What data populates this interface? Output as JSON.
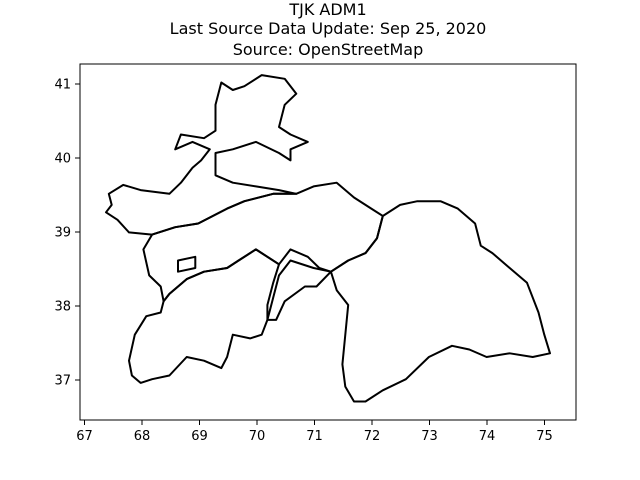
{
  "title_lines": [
    "TJK ADM1",
    "Last Source Data Update: Sep 25, 2020",
    "Source: OpenStreetMap"
  ],
  "x_ticks": [
    "67",
    "68",
    "69",
    "70",
    "71",
    "72",
    "73",
    "74",
    "75"
  ],
  "y_ticks": [
    "37",
    "38",
    "39",
    "40",
    "41"
  ],
  "chart_data": {
    "type": "map",
    "country": "TJK",
    "admin_level": "ADM1",
    "xlim": [
      66.95,
      75.55
    ],
    "ylim": [
      36.45,
      41.25
    ],
    "x_ticks": [
      67,
      68,
      69,
      70,
      71,
      72,
      73,
      74,
      75
    ],
    "y_ticks": [
      37,
      38,
      39,
      40,
      41
    ],
    "regions": [
      {
        "coords": [
          [
            69.4,
            41.0
          ],
          [
            69.6,
            40.9
          ],
          [
            69.8,
            40.95
          ],
          [
            70.1,
            41.1
          ],
          [
            70.5,
            41.05
          ],
          [
            70.7,
            40.85
          ],
          [
            70.5,
            40.7
          ],
          [
            70.4,
            40.4
          ],
          [
            70.6,
            40.3
          ],
          [
            70.9,
            40.2
          ],
          [
            70.6,
            40.1
          ],
          [
            70.6,
            39.95
          ],
          [
            70.4,
            40.05
          ],
          [
            70.0,
            40.2
          ],
          [
            69.6,
            40.1
          ],
          [
            69.3,
            40.05
          ],
          [
            69.3,
            39.75
          ],
          [
            69.6,
            39.65
          ],
          [
            70.0,
            39.6
          ],
          [
            70.4,
            39.55
          ],
          [
            70.7,
            39.5
          ],
          [
            70.3,
            39.5
          ],
          [
            69.8,
            39.4
          ],
          [
            69.5,
            39.3
          ],
          [
            69.0,
            39.1
          ],
          [
            68.6,
            39.05
          ],
          [
            68.2,
            38.95
          ],
          [
            67.8,
            38.98
          ],
          [
            67.6,
            39.15
          ],
          [
            67.4,
            39.25
          ],
          [
            67.5,
            39.35
          ],
          [
            67.45,
            39.5
          ],
          [
            67.7,
            39.62
          ],
          [
            68.0,
            39.55
          ],
          [
            68.5,
            39.5
          ],
          [
            68.7,
            39.65
          ],
          [
            68.9,
            39.85
          ],
          [
            69.05,
            39.95
          ],
          [
            69.2,
            40.1
          ],
          [
            68.9,
            40.2
          ],
          [
            68.6,
            40.1
          ],
          [
            68.7,
            40.3
          ],
          [
            69.1,
            40.25
          ],
          [
            69.3,
            40.35
          ],
          [
            69.3,
            40.7
          ],
          [
            69.4,
            41.0
          ]
        ]
      },
      {
        "coords": [
          [
            68.2,
            38.95
          ],
          [
            68.6,
            39.05
          ],
          [
            69.0,
            39.1
          ],
          [
            69.5,
            39.3
          ],
          [
            69.8,
            39.4
          ],
          [
            70.3,
            39.5
          ],
          [
            70.7,
            39.5
          ],
          [
            71.0,
            39.6
          ],
          [
            71.4,
            39.65
          ],
          [
            71.7,
            39.45
          ],
          [
            72.0,
            39.3
          ],
          [
            72.2,
            39.2
          ],
          [
            72.1,
            38.9
          ],
          [
            71.9,
            38.7
          ],
          [
            71.6,
            38.6
          ],
          [
            71.3,
            38.45
          ],
          [
            71.1,
            38.5
          ],
          [
            70.9,
            38.65
          ],
          [
            70.6,
            38.75
          ],
          [
            70.4,
            38.55
          ],
          [
            70.0,
            38.75
          ],
          [
            69.7,
            38.6
          ],
          [
            69.5,
            38.5
          ],
          [
            69.1,
            38.45
          ],
          [
            68.8,
            38.35
          ],
          [
            68.5,
            38.15
          ],
          [
            68.4,
            38.05
          ],
          [
            68.35,
            38.25
          ],
          [
            68.15,
            38.4
          ],
          [
            68.05,
            38.75
          ],
          [
            68.2,
            38.95
          ]
        ]
      },
      {
        "coords": [
          [
            68.65,
            38.6
          ],
          [
            68.95,
            38.65
          ],
          [
            68.95,
            38.5
          ],
          [
            68.65,
            38.45
          ],
          [
            68.65,
            38.6
          ]
        ]
      },
      {
        "coords": [
          [
            68.5,
            38.15
          ],
          [
            68.8,
            38.35
          ],
          [
            69.1,
            38.45
          ],
          [
            69.5,
            38.5
          ],
          [
            69.7,
            38.6
          ],
          [
            70.0,
            38.75
          ],
          [
            70.4,
            38.55
          ],
          [
            70.3,
            38.3
          ],
          [
            70.2,
            38.0
          ],
          [
            70.2,
            37.8
          ],
          [
            70.1,
            37.6
          ],
          [
            69.9,
            37.55
          ],
          [
            69.6,
            37.6
          ],
          [
            69.5,
            37.3
          ],
          [
            69.4,
            37.15
          ],
          [
            69.1,
            37.25
          ],
          [
            68.8,
            37.3
          ],
          [
            68.5,
            37.05
          ],
          [
            68.2,
            37.0
          ],
          [
            68.0,
            36.95
          ],
          [
            67.85,
            37.05
          ],
          [
            67.8,
            37.25
          ],
          [
            67.9,
            37.6
          ],
          [
            68.1,
            37.85
          ],
          [
            68.35,
            37.9
          ],
          [
            68.4,
            38.05
          ],
          [
            68.5,
            38.15
          ]
        ]
      },
      {
        "coords": [
          [
            70.2,
            37.8
          ],
          [
            70.3,
            38.1
          ],
          [
            70.4,
            38.4
          ],
          [
            70.6,
            38.6
          ],
          [
            71.0,
            38.5
          ],
          [
            71.3,
            38.45
          ],
          [
            71.4,
            38.2
          ],
          [
            71.6,
            38.0
          ],
          [
            71.55,
            37.6
          ],
          [
            71.5,
            37.2
          ],
          [
            71.55,
            36.9
          ],
          [
            71.7,
            36.7
          ],
          [
            71.9,
            36.7
          ],
          [
            72.2,
            36.85
          ],
          [
            72.6,
            37.0
          ],
          [
            73.0,
            37.3
          ],
          [
            73.4,
            37.45
          ],
          [
            73.7,
            37.4
          ],
          [
            74.0,
            37.3
          ],
          [
            74.4,
            37.35
          ],
          [
            74.8,
            37.3
          ],
          [
            75.1,
            37.35
          ],
          [
            75.0,
            37.6
          ],
          [
            74.9,
            37.9
          ],
          [
            74.7,
            38.3
          ],
          [
            74.4,
            38.5
          ],
          [
            74.1,
            38.7
          ],
          [
            73.9,
            38.8
          ],
          [
            73.8,
            39.1
          ],
          [
            73.5,
            39.3
          ],
          [
            73.2,
            39.4
          ],
          [
            72.8,
            39.4
          ],
          [
            72.5,
            39.35
          ],
          [
            72.2,
            39.2
          ],
          [
            72.1,
            38.9
          ],
          [
            71.9,
            38.7
          ],
          [
            71.6,
            38.6
          ],
          [
            71.3,
            38.45
          ],
          [
            71.05,
            38.25
          ],
          [
            70.85,
            38.25
          ],
          [
            70.5,
            38.05
          ],
          [
            70.35,
            37.8
          ],
          [
            70.2,
            37.8
          ]
        ]
      }
    ]
  }
}
